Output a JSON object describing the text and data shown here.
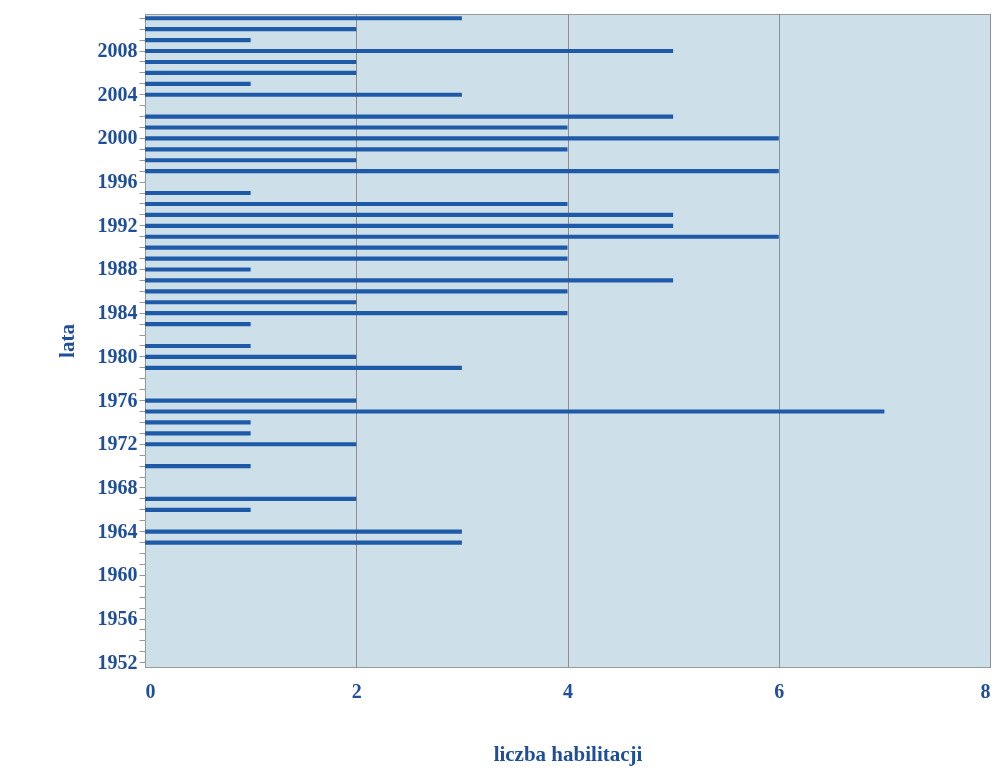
{
  "chart_data": {
    "type": "bar",
    "orientation": "horizontal",
    "xlabel": "liczba habilitacji",
    "ylabel": "lata",
    "categories": [
      null,
      null,
      null,
      "2008",
      null,
      null,
      null,
      "2004",
      null,
      null,
      null,
      "2000",
      null,
      null,
      null,
      "1996",
      null,
      null,
      null,
      "1992",
      null,
      null,
      null,
      "1988",
      null,
      null,
      null,
      "1984",
      null,
      null,
      null,
      "1980",
      null,
      null,
      null,
      "1976",
      null,
      null,
      null,
      "1972",
      null,
      null,
      null,
      "1968",
      null,
      null,
      null,
      "1964",
      null,
      null,
      null,
      "1960",
      null,
      null,
      null,
      "1956",
      null,
      null,
      null,
      "1952"
    ],
    "values": [
      3,
      2,
      1,
      5,
      2,
      2,
      1,
      3,
      null,
      5,
      4,
      6,
      4,
      2,
      6,
      null,
      1,
      4,
      5,
      5,
      6,
      4,
      4,
      1,
      5,
      4,
      2,
      4,
      1,
      null,
      1,
      2,
      3,
      null,
      null,
      2,
      7,
      1,
      1,
      2,
      null,
      1,
      null,
      null,
      2,
      1,
      null,
      3,
      3,
      null,
      null,
      null,
      null,
      null,
      null,
      null,
      null,
      null,
      null,
      null
    ],
    "color": "#1f5aa8",
    "xlim": [
      0,
      8
    ],
    "xticks": [
      0,
      2,
      4,
      6,
      8
    ],
    "grid": "x"
  }
}
